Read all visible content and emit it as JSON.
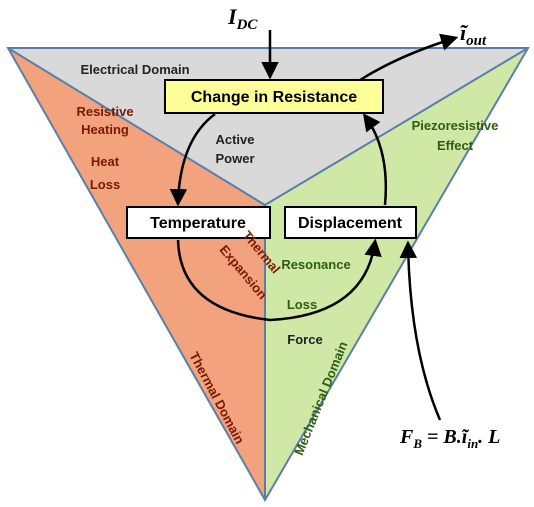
{
  "domains": {
    "electrical": "Electrical Domain",
    "thermal": "Thermal Domain",
    "mechanical": "Mechanical Domain"
  },
  "nodes": [
    {
      "label": "Change in Resistance"
    },
    {
      "label": "Temperature"
    },
    {
      "label": "Displacement"
    }
  ],
  "edge_labels": {
    "resistive_heating": [
      "Resistive",
      "Heating"
    ],
    "heat_loss": [
      "Heat",
      "Loss"
    ],
    "active_power": [
      "Active",
      "Power"
    ],
    "piezoresistive": [
      "Piezoresistive",
      "Effect"
    ],
    "thermal_expansion": [
      "Thermal",
      "Expansion"
    ],
    "resonance": "Resonance",
    "loss": "Loss",
    "force": "Force"
  },
  "inputs": {
    "idc": {
      "main": "I",
      "sub": "DC"
    },
    "iout": {
      "main": "ĩ",
      "sub": "out"
    },
    "fb": {
      "parts": [
        "F",
        "B",
        " = B.",
        "ĩ",
        "in",
        ". L"
      ]
    }
  }
}
